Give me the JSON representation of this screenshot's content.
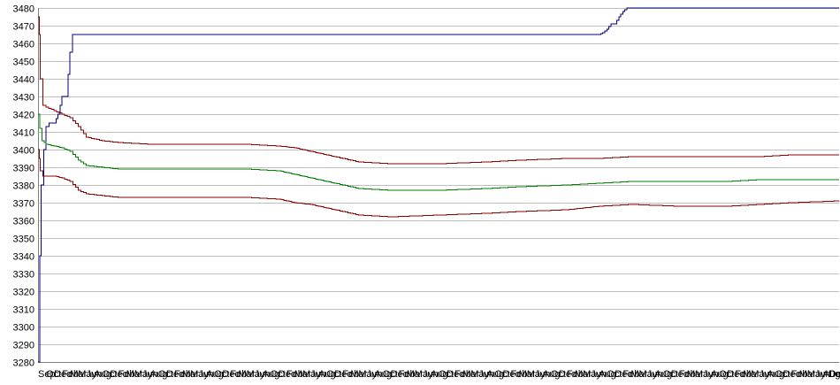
{
  "chart_data": {
    "type": "line",
    "title": "",
    "xlabel": "",
    "ylabel": "",
    "ylim": [
      3280,
      3480
    ],
    "y_ticks": [
      3280,
      3290,
      3300,
      3310,
      3320,
      3330,
      3340,
      3350,
      3360,
      3370,
      3380,
      3390,
      3400,
      3410,
      3420,
      3430,
      3440,
      3450,
      3460,
      3470,
      3480
    ],
    "grid": "horizontal",
    "legend": "none",
    "x_domain": [
      0,
      100
    ],
    "x_tick_labels": [
      "Sep",
      "Oct",
      "Dec",
      "Feb",
      "Mar",
      "May",
      "Jun",
      "Aug",
      "Oct",
      "Dec",
      "Feb",
      "Mar",
      "May",
      "Jun",
      "Aug",
      "Oct",
      "Dec",
      "Feb",
      "Mar",
      "May",
      "Jun",
      "Aug",
      "Oct",
      "Dec",
      "Feb",
      "Mar",
      "May",
      "Jun",
      "Aug",
      "Oct",
      "Dec",
      "Feb",
      "Mar",
      "May",
      "Jun",
      "Aug",
      "Oct",
      "Dec",
      "Feb",
      "Mar",
      "May",
      "Jun",
      "Aug",
      "Oct",
      "Dec",
      "Feb",
      "Mar",
      "May",
      "Jun",
      "Aug",
      "Oct",
      "Dec",
      "Feb",
      "Mar",
      "May",
      "Jun",
      "Aug",
      "Oct",
      "Dec",
      "Feb",
      "Mar",
      "May",
      "Jun",
      "Aug",
      "Oct",
      "Dec",
      "Feb",
      "Mar",
      "May",
      "Jun",
      "Aug",
      "Oct",
      "Dec",
      "Feb",
      "Mar",
      "May",
      "Jun",
      "Aug",
      "Oct",
      "Dec",
      "Feb",
      "Mar",
      "May",
      "Jun",
      "Aug",
      "Oct",
      "Dec",
      "Feb",
      "Mar",
      "May",
      "Jun",
      "Aug",
      "Oct",
      "Dec",
      "Feb",
      "Mar",
      "May",
      "Jun",
      "Aug",
      "Oct",
      "Dec"
    ],
    "series": [
      {
        "color": "#000080",
        "x": [
          0,
          0.2,
          0.4,
          0.7,
          1.0,
          1.4,
          2.0,
          2.5,
          3.0,
          3.5,
          4.0,
          4.3,
          70.0,
          70.5,
          71.0,
          71.5,
          72.0,
          72.5,
          73.0,
          73.5,
          100
        ],
        "values": [
          3280,
          3340,
          3380,
          3400,
          3413,
          3415,
          3415,
          3420,
          3430,
          3430,
          3455,
          3465,
          3465,
          3466,
          3468,
          3471,
          3471,
          3475,
          3478,
          3480,
          3480
        ]
      },
      {
        "color": "#8b0000",
        "x": [
          0,
          0.15,
          0.3,
          0.6,
          1.0,
          2.0,
          3.0,
          4.0,
          5.0,
          6.0,
          8.0,
          10.0,
          14.0,
          18.0,
          22.0,
          26.0,
          30.0,
          32.0,
          34.0,
          36.0,
          38.0,
          40.0,
          44.0,
          50.0,
          56.0,
          60.0,
          66.0,
          70.0,
          74.0,
          80.0,
          86.0,
          90.0,
          94.0,
          100
        ],
        "values": [
          3475,
          3465,
          3440,
          3425,
          3424,
          3422,
          3420,
          3418,
          3413,
          3407,
          3405,
          3404,
          3403,
          3403,
          3403,
          3403,
          3402,
          3401,
          3399,
          3397,
          3395,
          3393,
          3392,
          3392,
          3393,
          3394,
          3395,
          3395,
          3396,
          3396,
          3396,
          3396,
          3397,
          3397
        ]
      },
      {
        "color": "#008000",
        "x": [
          0,
          0.2,
          0.5,
          0.8,
          1.0,
          2.0,
          3.0,
          4.0,
          5.0,
          6.0,
          8.0,
          10.0,
          14.0,
          18.0,
          22.0,
          26.0,
          30.0,
          32.0,
          34.0,
          36.0,
          38.0,
          40.0,
          44.0,
          50.0,
          56.0,
          60.0,
          66.0,
          70.0,
          74.0,
          80.0,
          86.0,
          90.0,
          94.0,
          100
        ],
        "values": [
          3420,
          3412,
          3405,
          3404,
          3403,
          3402,
          3401,
          3399,
          3394,
          3391,
          3390,
          3389,
          3389,
          3389,
          3389,
          3389,
          3388,
          3386,
          3384,
          3382,
          3380,
          3378,
          3377,
          3377,
          3378,
          3379,
          3380,
          3381,
          3382,
          3382,
          3382,
          3383,
          3383,
          3383
        ]
      },
      {
        "color": "#8b0000",
        "x": [
          0,
          0.15,
          0.3,
          0.6,
          1.0,
          2.0,
          3.0,
          4.0,
          5.0,
          6.0,
          8.0,
          10.0,
          14.0,
          18.0,
          22.0,
          26.0,
          30.0,
          32.0,
          34.0,
          36.0,
          38.0,
          40.0,
          44.0,
          50.0,
          56.0,
          60.0,
          66.0,
          70.0,
          74.0,
          80.0,
          86.0,
          90.0,
          94.0,
          100
        ],
        "values": [
          3400,
          3395,
          3388,
          3385,
          3385,
          3385,
          3384,
          3382,
          3377,
          3375,
          3374,
          3373,
          3373,
          3373,
          3373,
          3373,
          3372,
          3370,
          3369,
          3367,
          3365,
          3363,
          3362,
          3363,
          3364,
          3365,
          3366,
          3368,
          3369,
          3368,
          3368,
          3369,
          3370,
          3371
        ]
      }
    ]
  }
}
